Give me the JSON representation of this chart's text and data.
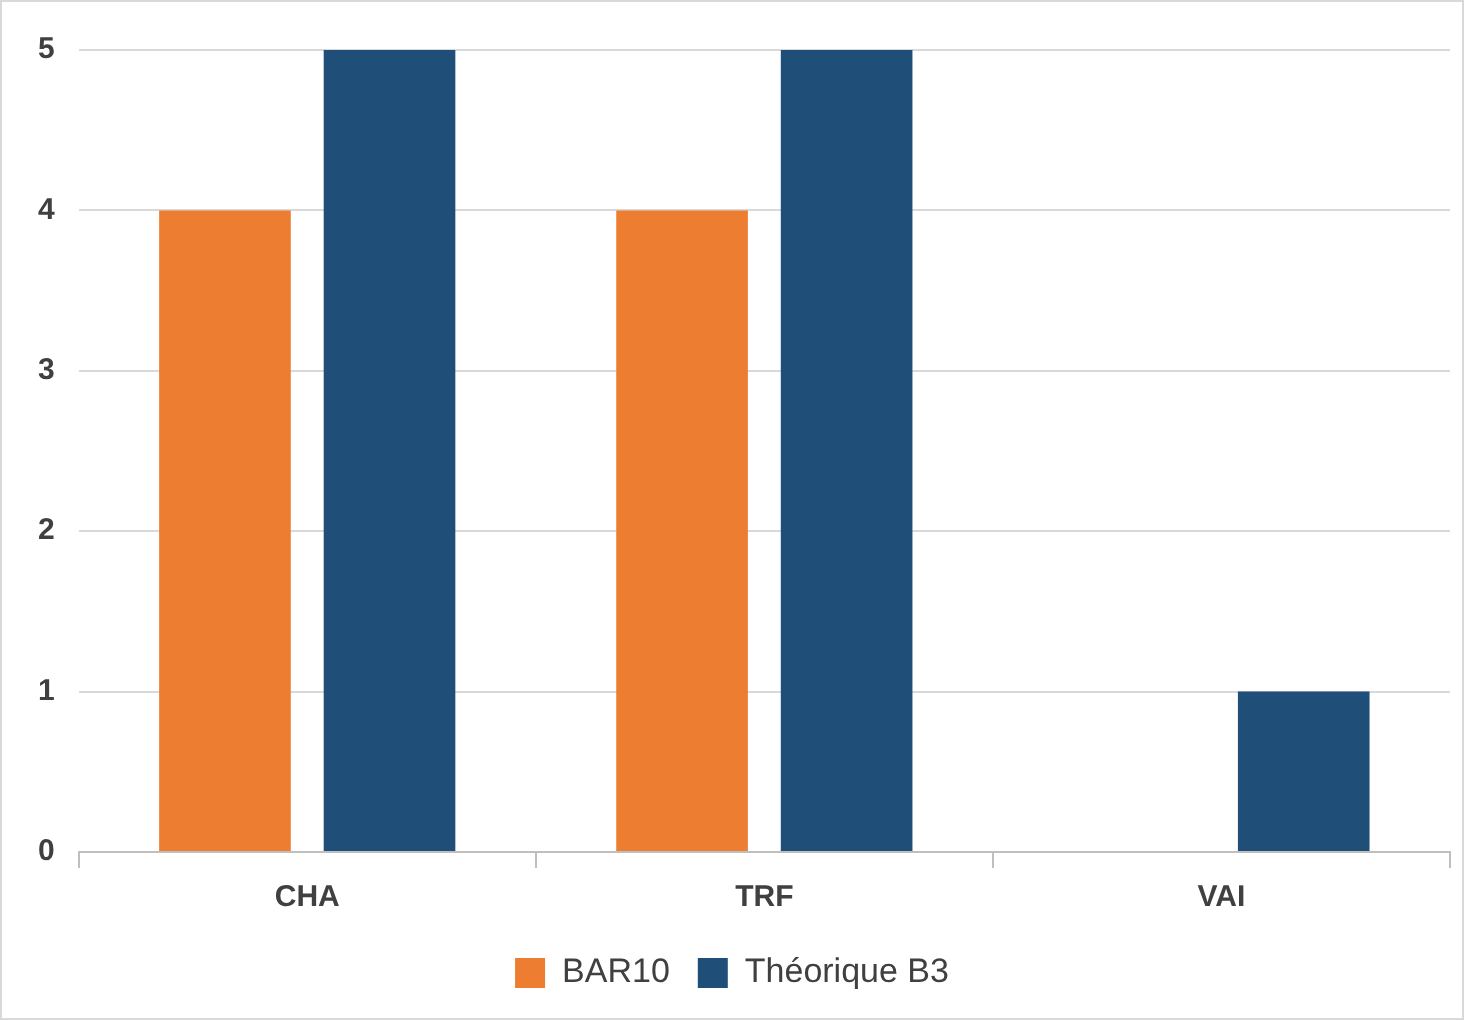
{
  "chart_data": {
    "type": "bar",
    "categories": [
      "CHA",
      "TRF",
      "VAI"
    ],
    "series": [
      {
        "name": "BAR10",
        "color": "#ed7d31",
        "values": [
          4,
          4,
          0
        ]
      },
      {
        "name": "Théorique B3",
        "color": "#1f4e79",
        "values": [
          5,
          5,
          1
        ]
      }
    ],
    "ylim": [
      0,
      5
    ],
    "yticks": [
      0,
      1,
      2,
      3,
      4,
      5
    ],
    "grid": "y",
    "legend": "bottom"
  }
}
